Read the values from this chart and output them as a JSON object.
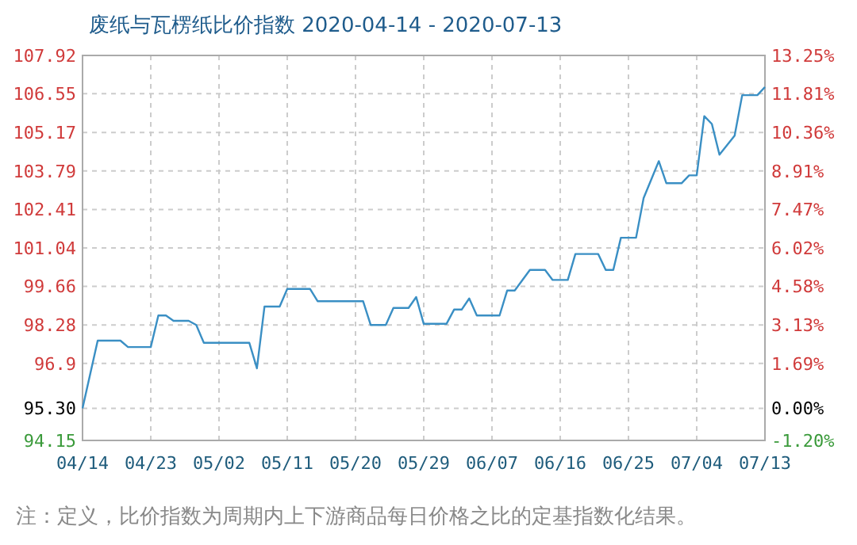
{
  "chart_data": {
    "type": "line",
    "title": "废纸与瓦楞纸比价指数 2020-04-14 - 2020-07-13",
    "annotations": [
      "注：定义，比价指数为周期内上下游商品每日价格之比的定基指数化结果。"
    ],
    "x": [
      "2020-04-14",
      "2020-04-16",
      "2020-04-19",
      "2020-04-20",
      "2020-04-23",
      "2020-04-24",
      "2020-04-25",
      "2020-04-26",
      "2020-04-28",
      "2020-04-29",
      "2020-04-30",
      "2020-05-06",
      "2020-05-07",
      "2020-05-08",
      "2020-05-10",
      "2020-05-11",
      "2020-05-14",
      "2020-05-15",
      "2020-05-21",
      "2020-05-22",
      "2020-05-24",
      "2020-05-25",
      "2020-05-27",
      "2020-05-28",
      "2020-05-29",
      "2020-06-01",
      "2020-06-02",
      "2020-06-03",
      "2020-06-04",
      "2020-06-05",
      "2020-06-08",
      "2020-06-09",
      "2020-06-10",
      "2020-06-12",
      "2020-06-14",
      "2020-06-15",
      "2020-06-17",
      "2020-06-18",
      "2020-06-21",
      "2020-06-22",
      "2020-06-23",
      "2020-06-24",
      "2020-06-26",
      "2020-06-27",
      "2020-06-28",
      "2020-06-29",
      "2020-06-30",
      "2020-07-02",
      "2020-07-03",
      "2020-07-04",
      "2020-07-05",
      "2020-07-06",
      "2020-07-07",
      "2020-07-09",
      "2020-07-10",
      "2020-07-12",
      "2020-07-13"
    ],
    "series": [
      {
        "color": "#3a8fc4",
        "values": [
          95.3,
          97.72,
          97.72,
          97.49,
          97.49,
          98.62,
          98.62,
          98.43,
          98.43,
          98.28,
          97.64,
          97.64,
          96.73,
          98.94,
          98.94,
          99.57,
          99.57,
          99.13,
          99.13,
          98.28,
          98.28,
          98.89,
          98.89,
          99.28,
          98.32,
          98.32,
          98.83,
          98.83,
          99.23,
          98.62,
          98.62,
          99.51,
          99.51,
          100.25,
          100.25,
          99.89,
          99.89,
          100.82,
          100.82,
          100.25,
          100.25,
          101.4,
          101.4,
          102.82,
          103.48,
          104.14,
          103.35,
          103.35,
          103.63,
          103.63,
          105.75,
          105.47,
          104.37,
          105.05,
          106.5,
          106.5,
          106.79
        ]
      }
    ],
    "xlim": [
      "2020-04-14",
      "2020-07-13"
    ],
    "xticks": [
      {
        "value": "2020-04-14",
        "label": "04/14"
      },
      {
        "value": "2020-04-23",
        "label": "04/23"
      },
      {
        "value": "2020-05-02",
        "label": "05/02"
      },
      {
        "value": "2020-05-11",
        "label": "05/11"
      },
      {
        "value": "2020-05-20",
        "label": "05/20"
      },
      {
        "value": "2020-05-29",
        "label": "05/29"
      },
      {
        "value": "2020-06-07",
        "label": "06/07"
      },
      {
        "value": "2020-06-16",
        "label": "06/16"
      },
      {
        "value": "2020-06-25",
        "label": "06/25"
      },
      {
        "value": "2020-07-04",
        "label": "07/04"
      },
      {
        "value": "2020-07-13",
        "label": "07/13"
      }
    ],
    "ylim": [
      94.15,
      107.92
    ],
    "yticks": [
      {
        "value": 94.15,
        "label": "94.15"
      },
      {
        "value": 95.3,
        "label": "95.30"
      },
      {
        "value": 96.904,
        "label": "96.9"
      },
      {
        "value": 98.281,
        "label": "98.28"
      },
      {
        "value": 99.658,
        "label": "99.66"
      },
      {
        "value": 101.035,
        "label": "101.04"
      },
      {
        "value": 102.412,
        "label": "102.41"
      },
      {
        "value": 103.789,
        "label": "103.79"
      },
      {
        "value": 105.166,
        "label": "105.17"
      },
      {
        "value": 106.55,
        "label": "106.55"
      },
      {
        "value": 107.92,
        "label": "107.92"
      }
    ],
    "y2lim": [
      -1.2,
      13.25
    ],
    "y2ticks": [
      {
        "value": -1.2,
        "label": "-1.20%"
      },
      {
        "value": 0,
        "label": "0.00%"
      },
      {
        "value": 1.69,
        "label": "1.69%"
      },
      {
        "value": 3.135,
        "label": "3.13%"
      },
      {
        "value": 4.58,
        "label": "4.58%"
      },
      {
        "value": 6.025,
        "label": "6.02%"
      },
      {
        "value": 7.47,
        "label": "7.47%"
      },
      {
        "value": 8.915,
        "label": "8.91%"
      },
      {
        "value": 10.36,
        "label": "10.36%"
      },
      {
        "value": 11.805,
        "label": "11.81%"
      },
      {
        "value": 13.25,
        "label": "13.25%"
      }
    ],
    "grid": true
  }
}
